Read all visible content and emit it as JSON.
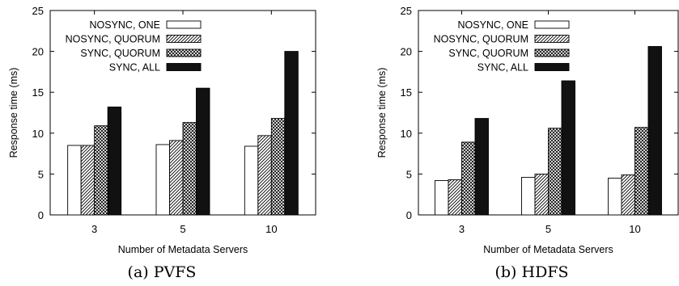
{
  "chart_data": [
    {
      "type": "bar",
      "caption": "(a) PVFS",
      "xlabel": "Number of Metadata Servers",
      "ylabel": "Response time (ms)",
      "ylim": [
        0,
        25
      ],
      "yticks": [
        0,
        5,
        10,
        15,
        20,
        25
      ],
      "categories": [
        "3",
        "5",
        "10"
      ],
      "legend_position": "top-left",
      "series": [
        {
          "name": "NOSYNC, ONE",
          "pattern": "white",
          "values": [
            8.5,
            8.6,
            8.4
          ]
        },
        {
          "name": "NOSYNC, QUORUM",
          "pattern": "diagonal-hatch",
          "values": [
            8.5,
            9.1,
            9.7
          ]
        },
        {
          "name": "SYNC, QUORUM",
          "pattern": "crosshatch",
          "values": [
            10.9,
            11.3,
            11.8
          ]
        },
        {
          "name": "SYNC, ALL",
          "pattern": "solid-black",
          "values": [
            13.2,
            15.5,
            20.0
          ]
        }
      ]
    },
    {
      "type": "bar",
      "caption": "(b) HDFS",
      "xlabel": "Number of Metadata Servers",
      "ylabel": "Response time (ms)",
      "ylim": [
        0,
        25
      ],
      "yticks": [
        0,
        5,
        10,
        15,
        20,
        25
      ],
      "categories": [
        "3",
        "5",
        "10"
      ],
      "legend_position": "top-left",
      "series": [
        {
          "name": "NOSYNC, ONE",
          "pattern": "white",
          "values": [
            4.2,
            4.6,
            4.5
          ]
        },
        {
          "name": "NOSYNC, QUORUM",
          "pattern": "diagonal-hatch",
          "values": [
            4.3,
            5.0,
            4.9
          ]
        },
        {
          "name": "SYNC, QUORUM",
          "pattern": "crosshatch",
          "values": [
            8.9,
            10.6,
            10.7
          ]
        },
        {
          "name": "SYNC, ALL",
          "pattern": "solid-black",
          "values": [
            11.8,
            16.4,
            20.6
          ]
        }
      ]
    }
  ]
}
